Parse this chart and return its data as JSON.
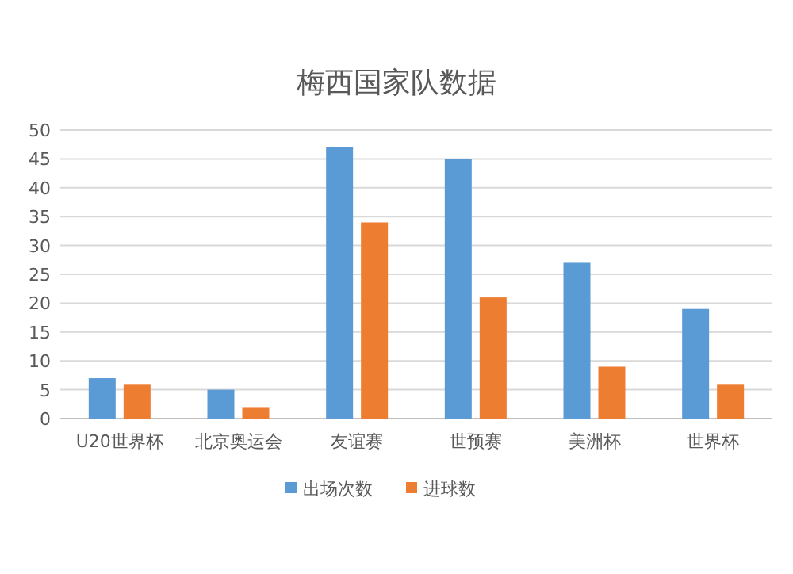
{
  "chart_data": {
    "type": "bar",
    "title": "梅西国家队数据",
    "categories": [
      "U20世界杯",
      "北京奥运会",
      "友谊赛",
      "世预赛",
      "美洲杯",
      "世界杯"
    ],
    "series": [
      {
        "name": "出场次数",
        "color": "#5b9bd5",
        "values": [
          7,
          5,
          47,
          45,
          27,
          19
        ]
      },
      {
        "name": "进球数",
        "color": "#ed7d31",
        "values": [
          6,
          2,
          34,
          21,
          9,
          6
        ]
      }
    ],
    "ylim": [
      0,
      50
    ],
    "yticks": [
      0,
      5,
      10,
      15,
      20,
      25,
      30,
      35,
      40,
      45,
      50
    ],
    "grid": "y",
    "legend": "bottom"
  }
}
